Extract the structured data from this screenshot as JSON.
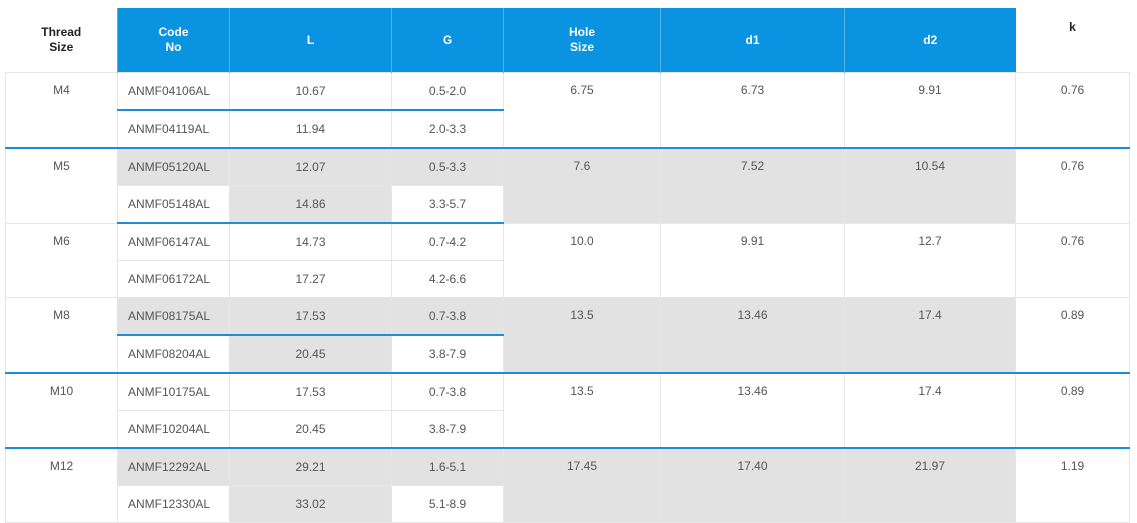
{
  "headers": {
    "thread_size": "Thread\nSize",
    "code_no": "Code\nNo",
    "l": "L",
    "g": "G",
    "hole_size": "Hole\nSize",
    "d1": "d1",
    "d2": "d2",
    "k": "k"
  },
  "colors": {
    "header_blue": "#0a93e0",
    "row_shade": "#e2e2e2",
    "separator_blue": "#1a8fd8"
  },
  "groups": [
    {
      "thread": "M4",
      "hole": "6.75",
      "d1": "6.73",
      "d2": "9.91",
      "k": "0.76",
      "rows": [
        {
          "code": "ANMF04106AL",
          "L": "10.67",
          "G": "0.5-2.0"
        },
        {
          "code": "ANMF04119AL",
          "L": "11.94",
          "G": "2.0-3.3"
        }
      ]
    },
    {
      "thread": "M5",
      "hole": "7.6",
      "d1": "7.52",
      "d2": "10.54",
      "k": "0.76",
      "rows": [
        {
          "code": "ANMF05120AL",
          "L": "12.07",
          "G": "0.5-3.3"
        },
        {
          "code": "ANMF05148AL",
          "L": "14.86",
          "G": "3.3-5.7"
        }
      ]
    },
    {
      "thread": "M6",
      "hole": "10.0",
      "d1": "9.91",
      "d2": "12.7",
      "k": "0.76",
      "rows": [
        {
          "code": "ANMF06147AL",
          "L": "14.73",
          "G": "0.7-4.2"
        },
        {
          "code": "ANMF06172AL",
          "L": "17.27",
          "G": "4.2-6.6"
        }
      ]
    },
    {
      "thread": "M8",
      "hole": "13.5",
      "d1": "13.46",
      "d2": "17.4",
      "k": "0.89",
      "rows": [
        {
          "code": "ANMF08175AL",
          "L": "17.53",
          "G": "0.7-3.8"
        },
        {
          "code": "ANMF08204AL",
          "L": "20.45",
          "G": "3.8-7.9"
        }
      ]
    },
    {
      "thread": "M10",
      "hole": "13.5",
      "d1": "13.46",
      "d2": "17.4",
      "k": "0.89",
      "rows": [
        {
          "code": "ANMF10175AL",
          "L": "17.53",
          "G": "0.7-3.8"
        },
        {
          "code": "ANMF10204AL",
          "L": "20.45",
          "G": "3.8-7.9"
        }
      ]
    },
    {
      "thread": "M12",
      "hole": "17.45",
      "d1": "17.40",
      "d2": "21.97",
      "k": "1.19",
      "rows": [
        {
          "code": "ANMF12292AL",
          "L": "29.21",
          "G": "1.6-5.1"
        },
        {
          "code": "ANMF12330AL",
          "L": "33.02",
          "G": "5.1-8.9"
        }
      ]
    }
  ]
}
